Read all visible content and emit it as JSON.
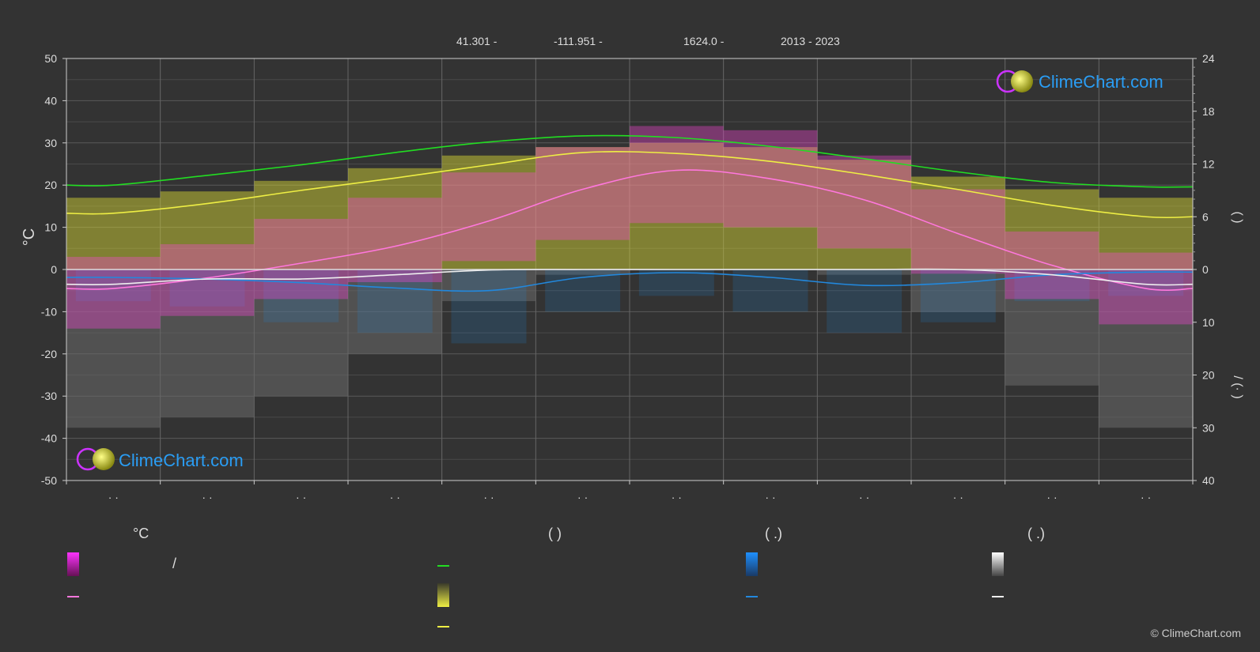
{
  "header": {
    "lat": "41.301 -",
    "lon": "-111.951 -",
    "elevation": "1624.0 -",
    "years": "2013 - 2023"
  },
  "watermark": {
    "text": "ClimeChart.com"
  },
  "copyright": "© ClimeChart.com",
  "colors": {
    "background": "#333333",
    "grid": "#5a5a5a",
    "daylight": "#22dd22",
    "sunshine": "#eeee44",
    "temp_mean": "#ff77dd",
    "temp_band": "#ff44dd",
    "sunshine_band": "#dddd33",
    "rain": "#2288dd",
    "snow": "#eeeeee",
    "brand": "#2a9df4"
  },
  "chart_data": {
    "type": "line",
    "x_tick_labels": [
      "· ·",
      "· ·",
      "· ·",
      "· ·",
      "· ·",
      "· ·",
      "· ·",
      "· ·",
      "· ·",
      "· ·",
      "· ·",
      "· ·"
    ],
    "y_left": {
      "label": "°C",
      "ticks": [
        50,
        40,
        30,
        20,
        10,
        0,
        -10,
        -20,
        -30,
        -40,
        -50
      ],
      "range": [
        -50,
        50
      ]
    },
    "y_right_top": {
      "label": "(  )",
      "ticks": [
        24,
        18,
        12,
        6,
        0
      ],
      "range": [
        0,
        24
      ]
    },
    "y_right_bottom": {
      "label": "/  (· )",
      "ticks": [
        0,
        10,
        20,
        30,
        40
      ],
      "range": [
        0,
        40
      ]
    },
    "grid": true,
    "series": [
      {
        "key": "daylight",
        "axis": "hours",
        "values": [
          9.6,
          10.7,
          11.9,
          13.3,
          14.5,
          15.2,
          15.0,
          14.0,
          12.6,
          11.1,
          9.9,
          9.4
        ]
      },
      {
        "key": "sunshine",
        "axis": "hours",
        "values": [
          6.4,
          7.5,
          9.0,
          10.4,
          11.9,
          13.3,
          13.2,
          12.3,
          10.8,
          9.1,
          7.3,
          6.0
        ]
      },
      {
        "key": "temp_mean",
        "axis": "temp",
        "values": [
          -4.5,
          -2.0,
          1.5,
          5.5,
          11.5,
          19.0,
          23.5,
          21.5,
          16.5,
          8.5,
          1.0,
          -4.5
        ]
      },
      {
        "key": "rain",
        "axis": "precip",
        "values": [
          1.5,
          1.8,
          2.5,
          3.5,
          4.0,
          1.5,
          0.6,
          1.5,
          3.0,
          2.5,
          1.0,
          0.5
        ]
      },
      {
        "key": "snow",
        "axis": "precip",
        "values": [
          2.8,
          1.8,
          1.8,
          1.0,
          0.1,
          0,
          0,
          0,
          0,
          0,
          1.0,
          2.8
        ]
      }
    ],
    "bands": {
      "temp_max": [
        3,
        6,
        12,
        17,
        23,
        29,
        34,
        33,
        27,
        19,
        9,
        4
      ],
      "temp_min": [
        -14,
        -11,
        -7,
        -3,
        2,
        7,
        11,
        10,
        5,
        -1,
        -7,
        -13
      ],
      "sunshine_band_top": [
        17.0,
        18.5,
        21.0,
        24.0,
        27.0,
        29.0,
        30.0,
        29.0,
        26.0,
        22.0,
        19.0,
        17.0
      ]
    }
  },
  "legend": {
    "col1": {
      "head": "°C",
      "row1": "/"
    },
    "col2": {
      "head": "(          )"
    },
    "col3": {
      "head": "(   .)"
    },
    "col4": {
      "head": "(   .)"
    }
  }
}
